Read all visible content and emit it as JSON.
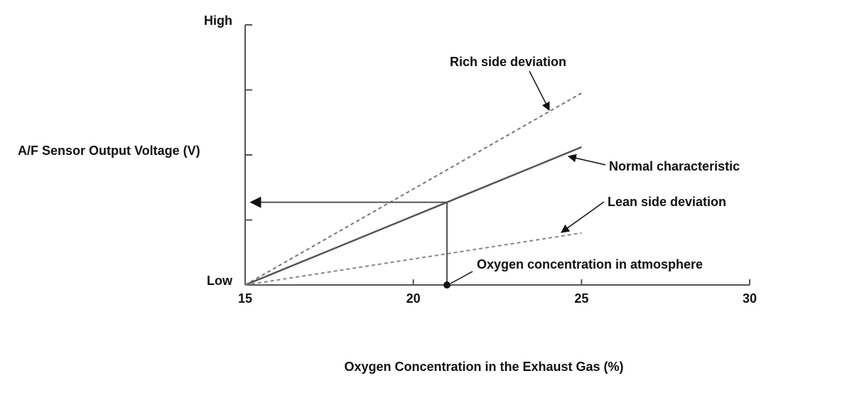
{
  "chart_data": {
    "type": "line",
    "x_label": "Oxygen Concentration in the Exhaust Gas (%)",
    "y_label": "A/F Sensor Output Voltage (V)",
    "xlim": [
      15,
      30
    ],
    "xticks": [
      15,
      20,
      25,
      30
    ],
    "ylim": [
      0,
      4
    ],
    "yticks": [
      {
        "value": 0,
        "label": "Low"
      },
      1,
      2,
      3,
      {
        "value": 4,
        "label": "High"
      }
    ],
    "series": [
      {
        "name": "Rich side deviation",
        "color": "#777777",
        "style": "dashed",
        "x": [
          15,
          25
        ],
        "values": [
          0,
          2.95
        ]
      },
      {
        "name": "Normal characteristic",
        "color": "#555555",
        "style": "solid",
        "x": [
          15,
          25
        ],
        "values": [
          0,
          2.12
        ]
      },
      {
        "name": "Lean side deviation",
        "color": "#888888",
        "style": "dashed",
        "x": [
          15,
          25
        ],
        "values": [
          0,
          0.8
        ]
      }
    ],
    "marker": {
      "x": 21,
      "label": "Oxygen concentration in atmosphere"
    }
  }
}
